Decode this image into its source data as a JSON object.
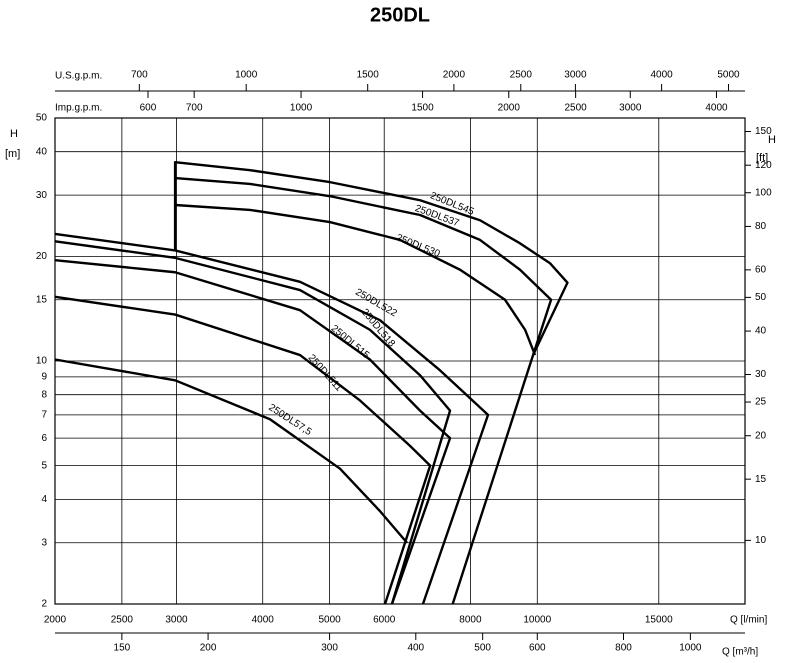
{
  "chart_data": {
    "type": "line",
    "title": "250DL",
    "log_x": true,
    "log_y": true,
    "grid": true,
    "color": "#000000",
    "x_label": "Q [l/min]",
    "xlim": [
      2000,
      20000
    ],
    "xticks": [
      2000,
      2500,
      3000,
      4000,
      5000,
      6000,
      8000,
      10000,
      15000
    ],
    "x2": {
      "label": "Q [m³/h]",
      "xlim": [
        120,
        1200
      ],
      "xticks": [
        150,
        200,
        300,
        400,
        500,
        600,
        800,
        1000
      ]
    },
    "x_us": {
      "label": "U.S.g.p.m.",
      "xlim": [
        528.34,
        5283.4
      ],
      "xticks": [
        700,
        1000,
        1500,
        2000,
        2500,
        3000,
        4000,
        5000
      ]
    },
    "x_imp": {
      "label": "Imp.g.p.m.",
      "xlim": [
        439.94,
        4399.4
      ],
      "xticks": [
        600,
        700,
        1000,
        1500,
        2000,
        2500,
        3000,
        4000
      ]
    },
    "y_label": "H",
    "y_unit": "[m]",
    "ylim": [
      2,
      50
    ],
    "yticks": [
      2,
      3,
      4,
      5,
      6,
      7,
      8,
      9,
      10,
      15,
      20,
      30,
      40,
      50
    ],
    "y2_label": "H",
    "y2_unit": "[ft]",
    "y2lim": [
      6.5617,
      164.04
    ],
    "y2ticks": [
      10,
      15,
      20,
      25,
      30,
      40,
      50,
      60,
      80,
      100,
      120,
      150
    ],
    "series": [
      {
        "name": "250DL545",
        "x": [
          2986,
          2986,
          3835,
          5004,
          6762,
          8260,
          9440,
          10436,
          11060,
          9860,
          7540
        ],
        "values": [
          20.8,
          37.3,
          35.4,
          32.7,
          29.0,
          25.4,
          21.8,
          19.1,
          16.8,
          10.4,
          2
        ]
      },
      {
        "name": "250DL537",
        "x": [
          2986,
          3835,
          5004,
          6762,
          8260,
          9440,
          10470,
          9860
        ],
        "values": [
          33.6,
          32.3,
          29.8,
          26.3,
          22.3,
          18.3,
          15.0,
          10.4
        ]
      },
      {
        "name": "250DL530",
        "x": [
          2986,
          3835,
          5004,
          6325,
          7728,
          8980,
          9600,
          9925
        ],
        "values": [
          28.1,
          27.2,
          25.1,
          22.3,
          18.3,
          15.0,
          12.3,
          10.4
        ]
      },
      {
        "name": "250DL522",
        "x": [
          2000,
          2986,
          4530,
          5916,
          7228,
          8484,
          6828
        ],
        "values": [
          23.2,
          20.8,
          16.9,
          13.1,
          9.4,
          7.0,
          2
        ]
      },
      {
        "name": "250DL518",
        "x": [
          2000,
          2986,
          4530,
          5720,
          6762,
          7474,
          6157
        ],
        "values": [
          22.1,
          19.8,
          16.0,
          12.3,
          9.1,
          7.2,
          2
        ]
      },
      {
        "name": "250DL515",
        "x": [
          2000,
          2986,
          4530,
          5720,
          6762,
          7474,
          6157
        ],
        "values": [
          19.5,
          18.0,
          14.0,
          10.1,
          7.2,
          6.0,
          2
        ]
      },
      {
        "name": "250DL511",
        "x": [
          2000,
          2986,
          4530,
          5534,
          6540,
          6994,
          6016
        ],
        "values": [
          15.3,
          13.6,
          10.4,
          7.7,
          5.7,
          5.0,
          2
        ]
      },
      {
        "name": "250DL57,5",
        "x": [
          2000,
          2986,
          4098,
          5177,
          5916,
          6474
        ],
        "values": [
          10.1,
          8.8,
          6.8,
          4.9,
          3.7,
          3.0
        ]
      }
    ]
  }
}
